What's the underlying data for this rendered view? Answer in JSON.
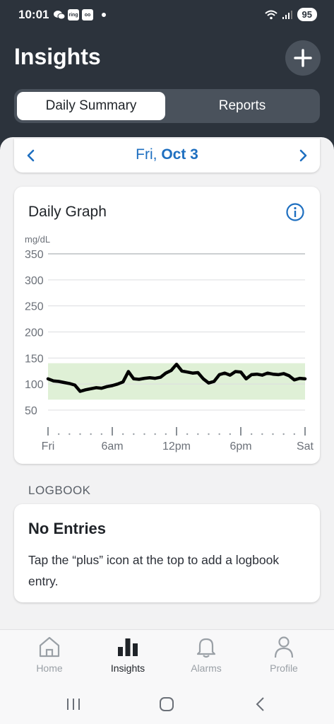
{
  "status_bar": {
    "time": "10:01",
    "battery": "95",
    "mini_icons": [
      "ring",
      "oo"
    ]
  },
  "header": {
    "title": "Insights",
    "tabs": [
      {
        "label": "Daily Summary",
        "active": true
      },
      {
        "label": "Reports",
        "active": false
      }
    ]
  },
  "date_nav": {
    "day": "Fri,",
    "date": "Oct 3"
  },
  "graph": {
    "title": "Daily Graph",
    "unit": "mg/dL"
  },
  "chart_data": {
    "type": "line",
    "title": "Daily Graph",
    "ylabel": "mg/dL",
    "ylim": [
      50,
      350
    ],
    "yticks": [
      "350",
      "300",
      "250",
      "200",
      "150",
      "100",
      "50"
    ],
    "xticks": [
      "Fri",
      "6am",
      "12pm",
      "6pm",
      "Sat"
    ],
    "target_range": [
      70,
      140
    ],
    "series": [
      {
        "x": [
          0,
          0.5,
          1,
          1.5,
          2,
          2.5,
          3,
          3.5,
          4,
          4.5,
          5,
          5.5,
          6,
          6.5,
          7,
          7.5,
          8,
          8.5,
          9,
          9.5,
          10,
          10.5,
          11,
          11.5,
          12,
          12.5,
          13,
          13.5,
          14,
          14.5,
          15,
          15.5,
          16,
          16.5,
          17,
          17.5,
          18,
          18.5,
          19,
          19.5,
          20,
          20.5,
          21,
          21.5,
          22,
          22.5,
          23,
          23.5,
          24
        ],
        "y": [
          110,
          106,
          105,
          103,
          101,
          98,
          86,
          89,
          91,
          93,
          92,
          95,
          97,
          100,
          104,
          124,
          110,
          109,
          111,
          112,
          111,
          113,
          121,
          126,
          138,
          125,
          123,
          121,
          122,
          110,
          102,
          105,
          118,
          121,
          117,
          124,
          123,
          110,
          118,
          119,
          117,
          121,
          119,
          118,
          120,
          116,
          108,
          111,
          110
        ]
      }
    ]
  },
  "logbook": {
    "section_label": "LOGBOOK",
    "title": "No Entries",
    "message": "Tap the “plus” icon at the top to add a logbook entry."
  },
  "bottom_nav": {
    "items": [
      {
        "label": "Home",
        "icon": "home-icon",
        "active": false
      },
      {
        "label": "Insights",
        "icon": "bar-chart-icon",
        "active": true
      },
      {
        "label": "Alarms",
        "icon": "bell-icon",
        "active": false
      },
      {
        "label": "Profile",
        "icon": "person-icon",
        "active": false
      }
    ]
  },
  "colors": {
    "header_bg": "#2c333c",
    "accent_blue": "#1e6fc0",
    "target_range_fill": "#dff0d6"
  }
}
